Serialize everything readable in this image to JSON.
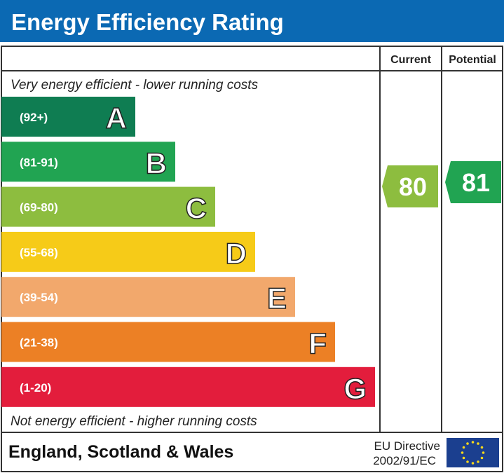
{
  "title": "Energy Efficiency Rating",
  "columns": {
    "current": "Current",
    "potential": "Potential"
  },
  "top_note": "Very energy efficient - lower running costs",
  "bottom_note": "Not energy efficient - higher running costs",
  "footer": {
    "region": "England, Scotland & Wales",
    "directive_line1": "EU Directive",
    "directive_line2": "2002/91/EC",
    "flag_icon": "eu-flag-icon"
  },
  "colors": {
    "header": "#0b69b3",
    "border": "#333333"
  },
  "chart_data": {
    "type": "bar",
    "bands": [
      {
        "letter": "A",
        "range": "(92+)",
        "color": "#0f7d52"
      },
      {
        "letter": "B",
        "range": "(81-91)",
        "color": "#21a452"
      },
      {
        "letter": "C",
        "range": "(69-80)",
        "color": "#8dbd3f"
      },
      {
        "letter": "D",
        "range": "(55-68)",
        "color": "#f6cb18"
      },
      {
        "letter": "E",
        "range": "(39-54)",
        "color": "#f2a86c"
      },
      {
        "letter": "F",
        "range": "(21-38)",
        "color": "#ec8025"
      },
      {
        "letter": "G",
        "range": "(1-20)",
        "color": "#e31d3c"
      }
    ],
    "current": {
      "value": 80,
      "band": "C",
      "color": "#8dbd3f"
    },
    "potential": {
      "value": 81,
      "band": "B",
      "color": "#21a452"
    }
  }
}
